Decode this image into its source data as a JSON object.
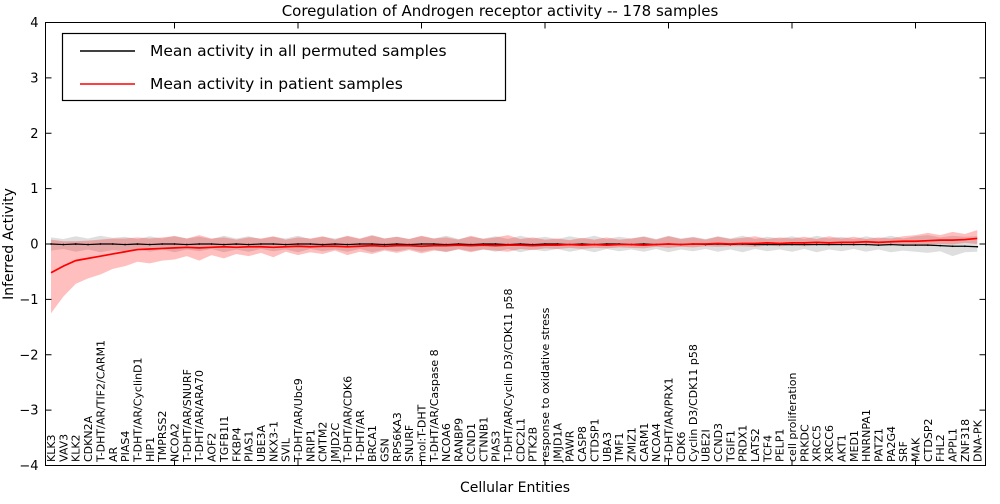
{
  "chart_data": {
    "type": "line",
    "title": "Coregulation of Androgen receptor activity -- 178 samples",
    "xlabel": "Cellular Entities",
    "ylabel": "Inferred Activity",
    "ylim": [
      -4,
      4
    ],
    "yticks": [
      "4",
      "3",
      "2",
      "1",
      "0",
      "−1",
      "−2",
      "−3",
      "−4"
    ],
    "ytick_values": [
      4,
      3,
      2,
      1,
      0,
      -1,
      -2,
      -3,
      -4
    ],
    "grid": false,
    "legend_position": "upper left",
    "legend": {
      "entries": [
        {
          "label": "Mean activity in all permuted samples",
          "color": "#000000"
        },
        {
          "label": "Mean activity in patient samples",
          "color": "#ff0000"
        }
      ]
    },
    "colors": {
      "permuted_line": "#000000",
      "patient_line": "#ff0000",
      "permuted_band": "#000000",
      "patient_band": "#ff0000",
      "frame": "#000000"
    },
    "categories": [
      "KLK3",
      "VAV3",
      "KLK2",
      "CDKN2A",
      "T-DHT/AR/TIF2/CARM1",
      "AR",
      "PIAS4",
      "T-DHT/AR/CyclinD1",
      "HIP1",
      "TMPRSS2",
      "NCOA2",
      "T-DHT/AR/SNURF",
      "T-DHT/AR/ARA70",
      "AOF2",
      "TGFB1I1",
      "FKBP4",
      "PIAS1",
      "UBE3A",
      "NKX3-1",
      "SVIL",
      "T-DHT/AR/Ubc9",
      "NRIP1",
      "CMTM2",
      "JMJD2C",
      "T-DHT/AR/CDK6",
      "T-DHT/AR",
      "BRCA1",
      "GSN",
      "RPS6KA3",
      "SNURF",
      "mol:T-DHT",
      "T-DHT/AR/Caspase 8",
      "NCOA6",
      "RANBP9",
      "CCND1",
      "CTNNB1",
      "PIAS3",
      "T-DHT/AR/Cyclin D3/CDK11 p58",
      "CDC2L1",
      "PTK2B",
      "response to oxidative stress",
      "JMJD1A",
      "PAWR",
      "CASP8",
      "CTDSP1",
      "UBA3",
      "TMF1",
      "ZMIZ1",
      "CARM1",
      "NCOA4",
      "T-DHT/AR/PRX1",
      "CDK6",
      "Cyclin D3/CDK11 p58",
      "UBE2I",
      "CCND3",
      "TGIF1",
      "PRDX1",
      "LATS2",
      "TCF4",
      "PELP1",
      "cell proliferation",
      "PRKDC",
      "XRCC5",
      "XRCC6",
      "AKT1",
      "MED1",
      "HNRNPA1",
      "PATZ1",
      "PA2G4",
      "SRF",
      "MAK",
      "CTDSP2",
      "FHL2",
      "APPL1",
      "ZNF318",
      "DNA-PK"
    ],
    "series": [
      {
        "name": "Mean activity in all permuted samples",
        "values": [
          0,
          -0.01,
          0,
          -0.01,
          0,
          0,
          -0.01,
          0,
          -0.01,
          0,
          0,
          -0.01,
          0,
          0,
          -0.01,
          0,
          -0.01,
          0,
          0,
          -0.01,
          0,
          0,
          -0.01,
          0,
          -0.01,
          0,
          0,
          -0.01,
          0,
          -0.01,
          0,
          0,
          -0.01,
          0,
          -0.01,
          0,
          0,
          -0.01,
          0,
          -0.01,
          0,
          0,
          -0.01,
          0,
          -0.01,
          0,
          0,
          -0.01,
          0,
          -0.01,
          0,
          -0.01,
          0,
          -0.01,
          0,
          -0.01,
          0,
          -0.01,
          -0.01,
          -0.01,
          -0.01,
          -0.01,
          -0.01,
          -0.01,
          -0.01,
          -0.01,
          -0.01,
          -0.02,
          -0.01,
          -0.02,
          -0.02,
          -0.02,
          -0.03,
          -0.04,
          -0.04,
          -0.05
        ],
        "band_upper": [
          0.12,
          0.09,
          0.14,
          0.1,
          0.15,
          0.11,
          0.13,
          0.09,
          0.14,
          0.1,
          0.15,
          0.1,
          0.13,
          0.09,
          0.15,
          0.1,
          0.14,
          0.09,
          0.13,
          0.1,
          0.15,
          0.09,
          0.13,
          0.1,
          0.14,
          0.09,
          0.15,
          0.1,
          0.13,
          0.09,
          0.14,
          0.1,
          0.15,
          0.09,
          0.13,
          0.1,
          0.14,
          0.09,
          0.15,
          0.1,
          0.13,
          0.09,
          0.14,
          0.1,
          0.15,
          0.09,
          0.13,
          0.1,
          0.14,
          0.09,
          0.15,
          0.1,
          0.13,
          0.09,
          0.14,
          0.1,
          0.15,
          0.09,
          0.13,
          0.1,
          0.14,
          0.09,
          0.15,
          0.1,
          0.13,
          0.09,
          0.14,
          0.1,
          0.15,
          0.1,
          0.14,
          0.16,
          0.12,
          0.15,
          0.13,
          0.14
        ],
        "band_lower": [
          -0.12,
          -0.09,
          -0.14,
          -0.1,
          -0.15,
          -0.11,
          -0.13,
          -0.09,
          -0.14,
          -0.1,
          -0.15,
          -0.1,
          -0.13,
          -0.09,
          -0.15,
          -0.1,
          -0.14,
          -0.09,
          -0.13,
          -0.1,
          -0.15,
          -0.09,
          -0.13,
          -0.1,
          -0.14,
          -0.09,
          -0.15,
          -0.1,
          -0.13,
          -0.09,
          -0.14,
          -0.1,
          -0.15,
          -0.09,
          -0.13,
          -0.1,
          -0.14,
          -0.09,
          -0.15,
          -0.1,
          -0.13,
          -0.09,
          -0.14,
          -0.1,
          -0.15,
          -0.09,
          -0.13,
          -0.1,
          -0.14,
          -0.09,
          -0.15,
          -0.1,
          -0.13,
          -0.09,
          -0.14,
          -0.1,
          -0.15,
          -0.09,
          -0.13,
          -0.1,
          -0.14,
          -0.09,
          -0.15,
          -0.1,
          -0.13,
          -0.09,
          -0.14,
          -0.1,
          -0.15,
          -0.12,
          -0.14,
          -0.16,
          -0.13,
          -0.22,
          -0.15,
          -0.14
        ]
      },
      {
        "name": "Mean activity in patient samples",
        "values": [
          -0.52,
          -0.4,
          -0.3,
          -0.26,
          -0.22,
          -0.18,
          -0.14,
          -0.1,
          -0.09,
          -0.08,
          -0.07,
          -0.06,
          -0.07,
          -0.06,
          -0.05,
          -0.06,
          -0.05,
          -0.05,
          -0.06,
          -0.05,
          -0.04,
          -0.05,
          -0.04,
          -0.04,
          -0.05,
          -0.04,
          -0.03,
          -0.04,
          -0.03,
          -0.03,
          -0.04,
          -0.03,
          -0.03,
          -0.02,
          -0.03,
          -0.02,
          -0.03,
          -0.02,
          -0.02,
          -0.03,
          -0.02,
          -0.02,
          -0.01,
          -0.02,
          -0.01,
          -0.02,
          -0.01,
          -0.01,
          -0.02,
          -0.01,
          0,
          -0.01,
          0,
          0,
          0.01,
          0,
          0.01,
          0.01,
          0.02,
          0.01,
          0.02,
          0.02,
          0.03,
          0.02,
          0.03,
          0.03,
          0.04,
          0.03,
          0.04,
          0.05,
          0.05,
          0.06,
          0.07,
          0.07,
          0.08,
          0.1
        ],
        "band_upper": [
          0.08,
          0.05,
          0.05,
          0.06,
          0.08,
          0.1,
          0.1,
          0.12,
          0.1,
          0.12,
          0.14,
          0.1,
          0.16,
          0.1,
          0.12,
          0.08,
          0.12,
          0.1,
          0.14,
          0.08,
          0.12,
          0.1,
          0.14,
          0.08,
          0.15,
          0.1,
          0.16,
          0.1,
          0.13,
          0.09,
          0.15,
          0.1,
          0.12,
          0.08,
          0.15,
          0.09,
          0.12,
          0.16,
          0.09,
          0.12,
          0.08,
          0.1,
          0.07,
          0.11,
          0.08,
          0.12,
          0.08,
          0.1,
          0.13,
          0.08,
          0.14,
          0.09,
          0.12,
          0.08,
          0.13,
          0.09,
          0.11,
          0.14,
          0.09,
          0.12,
          0.1,
          0.13,
          0.09,
          0.14,
          0.1,
          0.13,
          0.09,
          0.12,
          0.1,
          0.14,
          0.16,
          0.2,
          0.16,
          0.22,
          0.18,
          0.25
        ],
        "band_lower": [
          -1.25,
          -0.95,
          -0.72,
          -0.62,
          -0.55,
          -0.45,
          -0.4,
          -0.32,
          -0.35,
          -0.3,
          -0.28,
          -0.22,
          -0.3,
          -0.2,
          -0.26,
          -0.18,
          -0.22,
          -0.16,
          -0.24,
          -0.14,
          -0.2,
          -0.15,
          -0.18,
          -0.12,
          -0.2,
          -0.14,
          -0.18,
          -0.12,
          -0.16,
          -0.11,
          -0.17,
          -0.12,
          -0.14,
          -0.1,
          -0.15,
          -0.1,
          -0.12,
          -0.14,
          -0.09,
          -0.11,
          -0.08,
          -0.09,
          -0.07,
          -0.09,
          -0.07,
          -0.08,
          -0.06,
          -0.07,
          -0.08,
          -0.05,
          -0.07,
          -0.05,
          -0.06,
          -0.04,
          -0.05,
          -0.04,
          -0.04,
          -0.05,
          -0.03,
          -0.04,
          -0.03,
          -0.04,
          -0.02,
          -0.03,
          -0.02,
          -0.03,
          -0.01,
          -0.02,
          -0.01,
          -0.02,
          -0.01,
          -0.02,
          0.0,
          -0.01,
          0.02,
          0.0
        ]
      }
    ]
  }
}
